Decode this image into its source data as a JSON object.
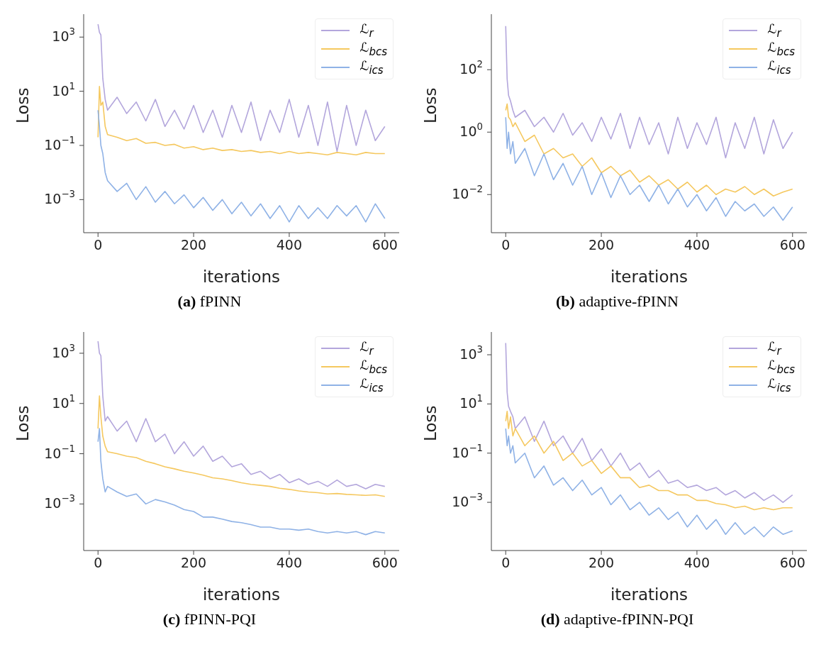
{
  "chart_data": [
    {
      "type": "line",
      "title": "(a) fPINN",
      "xlabel": "iterations",
      "ylabel": "Loss",
      "log": "y",
      "legend": "top right",
      "marker": "none",
      "line_style": "solid",
      "xlim": [
        -30,
        630
      ],
      "xticks": [
        0,
        200,
        400,
        600
      ],
      "ylim": [
        6e-05,
        7000
      ],
      "yticks": [
        {
          "value": 1000,
          "label": "10$^{3}$"
        },
        {
          "value": 10,
          "label": "10$^{1}$"
        },
        {
          "value": 0.1,
          "label": "10$^{−1}$"
        },
        {
          "value": 0.001,
          "label": "10$^{−3}$"
        }
      ],
      "x": [
        0,
        3,
        6,
        10,
        15,
        20,
        40,
        60,
        80,
        100,
        120,
        140,
        160,
        180,
        200,
        220,
        240,
        260,
        280,
        300,
        320,
        340,
        360,
        380,
        400,
        420,
        440,
        460,
        480,
        500,
        520,
        540,
        560,
        580,
        600
      ],
      "series": [
        {
          "name": "ℒ$_{r}$",
          "color": "#b3a6dc",
          "values": [
            3000,
            1500,
            1200,
            30,
            5,
            2,
            6,
            1.5,
            4,
            0.8,
            5,
            0.5,
            2,
            0.4,
            3,
            0.3,
            2,
            0.2,
            3,
            0.3,
            4,
            0.15,
            2,
            0.3,
            5,
            0.2,
            3,
            0.1,
            4,
            0.06,
            3,
            0.1,
            2,
            0.15,
            0.5
          ]
        },
        {
          "name": "ℒ$_{bcs}$",
          "color": "#f5c85f",
          "values": [
            0.2,
            15,
            3,
            4,
            0.5,
            0.25,
            0.2,
            0.15,
            0.18,
            0.12,
            0.13,
            0.1,
            0.11,
            0.08,
            0.09,
            0.07,
            0.08,
            0.065,
            0.07,
            0.06,
            0.065,
            0.055,
            0.06,
            0.05,
            0.06,
            0.05,
            0.055,
            0.05,
            0.045,
            0.055,
            0.05,
            0.045,
            0.055,
            0.05,
            0.05
          ]
        },
        {
          "name": "ℒ$_{ics}$",
          "color": "#8fb2e6",
          "values": [
            2,
            0.5,
            0.1,
            0.05,
            0.01,
            0.005,
            0.002,
            0.004,
            0.001,
            0.003,
            0.0008,
            0.002,
            0.0007,
            0.0015,
            0.0005,
            0.0012,
            0.0004,
            0.001,
            0.0003,
            0.0008,
            0.00025,
            0.0007,
            0.0002,
            0.0006,
            0.00015,
            0.0006,
            0.0002,
            0.0005,
            0.0002,
            0.0006,
            0.00025,
            0.0006,
            0.00015,
            0.0007,
            0.0002
          ]
        }
      ]
    },
    {
      "type": "line",
      "title": "(b) adaptive-fPINN",
      "xlabel": "iterations",
      "ylabel": "Loss",
      "log": "y",
      "legend": "top right",
      "marker": "none",
      "line_style": "solid",
      "xlim": [
        -30,
        630
      ],
      "xticks": [
        0,
        200,
        400,
        600
      ],
      "ylim": [
        0.0006,
        6000
      ],
      "yticks": [
        {
          "value": 100,
          "label": "10$^{2}$"
        },
        {
          "value": 1,
          "label": "10$^{0}$"
        },
        {
          "value": 0.01,
          "label": "10$^{−2}$"
        }
      ],
      "x": [
        0,
        3,
        6,
        10,
        15,
        20,
        40,
        60,
        80,
        100,
        120,
        140,
        160,
        180,
        200,
        220,
        240,
        260,
        280,
        300,
        320,
        340,
        360,
        380,
        400,
        420,
        440,
        460,
        480,
        500,
        520,
        540,
        560,
        580,
        600
      ],
      "series": [
        {
          "name": "ℒ$_{r}$",
          "color": "#b3a6dc",
          "values": [
            2500,
            50,
            15,
            10,
            5,
            3,
            5,
            1.5,
            3,
            1,
            4,
            0.8,
            2,
            0.5,
            3,
            0.6,
            4,
            0.3,
            3,
            0.4,
            2,
            0.2,
            3,
            0.3,
            2,
            0.4,
            3,
            0.15,
            2,
            0.3,
            3,
            0.2,
            2.5,
            0.3,
            1
          ]
        },
        {
          "name": "ℒ$_{bcs}$",
          "color": "#f5c85f",
          "values": [
            5,
            8,
            3,
            2.5,
            1.5,
            2,
            0.5,
            0.8,
            0.2,
            0.3,
            0.15,
            0.2,
            0.08,
            0.15,
            0.05,
            0.08,
            0.04,
            0.06,
            0.025,
            0.04,
            0.02,
            0.03,
            0.015,
            0.025,
            0.012,
            0.02,
            0.01,
            0.015,
            0.012,
            0.018,
            0.01,
            0.015,
            0.009,
            0.012,
            0.015
          ]
        },
        {
          "name": "ℒ$_{ics}$",
          "color": "#8fb2e6",
          "values": [
            3,
            0.3,
            1,
            0.2,
            0.5,
            0.1,
            0.3,
            0.04,
            0.2,
            0.03,
            0.1,
            0.02,
            0.08,
            0.01,
            0.05,
            0.008,
            0.04,
            0.01,
            0.02,
            0.006,
            0.02,
            0.005,
            0.015,
            0.004,
            0.01,
            0.003,
            0.008,
            0.002,
            0.006,
            0.003,
            0.005,
            0.002,
            0.004,
            0.0015,
            0.004
          ]
        }
      ]
    },
    {
      "type": "line",
      "title": "(c) fPINN-PQI",
      "xlabel": "iterations",
      "ylabel": "Loss",
      "log": "y",
      "legend": "top right",
      "marker": "none",
      "line_style": "solid",
      "xlim": [
        -30,
        630
      ],
      "xticks": [
        0,
        200,
        400,
        600
      ],
      "ylim": [
        1.4e-05,
        7000
      ],
      "yticks": [
        {
          "value": 1000,
          "label": "10$^{3}$"
        },
        {
          "value": 10,
          "label": "10$^{1}$"
        },
        {
          "value": 0.1,
          "label": "10$^{−1}$"
        },
        {
          "value": 0.001,
          "label": "10$^{−3}$"
        }
      ],
      "x": [
        0,
        3,
        6,
        10,
        15,
        20,
        40,
        60,
        80,
        100,
        120,
        140,
        160,
        180,
        200,
        220,
        240,
        260,
        280,
        300,
        320,
        340,
        360,
        380,
        400,
        420,
        440,
        460,
        480,
        500,
        520,
        540,
        560,
        580,
        600
      ],
      "series": [
        {
          "name": "ℒ$_{r}$",
          "color": "#b3a6dc",
          "values": [
            3000,
            1000,
            800,
            20,
            2,
            3,
            0.8,
            2,
            0.3,
            2.5,
            0.3,
            0.6,
            0.1,
            0.3,
            0.08,
            0.2,
            0.05,
            0.08,
            0.03,
            0.04,
            0.015,
            0.02,
            0.01,
            0.015,
            0.007,
            0.01,
            0.006,
            0.008,
            0.005,
            0.009,
            0.005,
            0.006,
            0.004,
            0.006,
            0.005
          ]
        },
        {
          "name": "ℒ$_{bcs}$",
          "color": "#f5c85f",
          "values": [
            1,
            20,
            3,
            0.5,
            0.2,
            0.12,
            0.1,
            0.08,
            0.07,
            0.05,
            0.04,
            0.03,
            0.025,
            0.02,
            0.017,
            0.014,
            0.011,
            0.01,
            0.0085,
            0.007,
            0.006,
            0.0055,
            0.005,
            0.0042,
            0.0038,
            0.0033,
            0.003,
            0.0028,
            0.0025,
            0.0026,
            0.0024,
            0.0023,
            0.0022,
            0.0023,
            0.002
          ]
        },
        {
          "name": "ℒ$_{ics}$",
          "color": "#8fb2e6",
          "values": [
            0.3,
            1,
            0.05,
            0.01,
            0.003,
            0.005,
            0.003,
            0.002,
            0.0025,
            0.001,
            0.0015,
            0.0012,
            0.0009,
            0.0006,
            0.0005,
            0.0003,
            0.0003,
            0.00025,
            0.0002,
            0.00018,
            0.00015,
            0.00012,
            0.00012,
            0.0001,
            0.0001,
            9e-05,
            0.0001,
            8e-05,
            7e-05,
            8e-05,
            7e-05,
            8e-05,
            6e-05,
            8e-05,
            7e-05
          ]
        }
      ]
    },
    {
      "type": "line",
      "title": "(d) adaptive-fPINN-PQI",
      "xlabel": "iterations",
      "ylabel": "Loss",
      "log": "y",
      "legend": "top right",
      "marker": "none",
      "line_style": "solid",
      "xlim": [
        -30,
        630
      ],
      "xticks": [
        0,
        200,
        400,
        600
      ],
      "ylim": [
        1.1e-05,
        8400
      ],
      "yticks": [
        {
          "value": 1000,
          "label": "10$^{3}$"
        },
        {
          "value": 10,
          "label": "10$^{1}$"
        },
        {
          "value": 0.1,
          "label": "10$^{−1}$"
        },
        {
          "value": 0.001,
          "label": "10$^{−3}$"
        }
      ],
      "x": [
        0,
        3,
        6,
        10,
        15,
        20,
        40,
        60,
        80,
        100,
        120,
        140,
        160,
        180,
        200,
        220,
        240,
        260,
        280,
        300,
        320,
        340,
        360,
        380,
        400,
        420,
        440,
        460,
        480,
        500,
        520,
        540,
        560,
        580,
        600
      ],
      "series": [
        {
          "name": "ℒ$_{r}$",
          "color": "#b3a6dc",
          "values": [
            3000,
            30,
            8,
            5,
            3,
            1,
            3,
            0.3,
            2,
            0.2,
            0.5,
            0.1,
            0.4,
            0.05,
            0.15,
            0.03,
            0.1,
            0.02,
            0.04,
            0.01,
            0.02,
            0.006,
            0.008,
            0.004,
            0.005,
            0.003,
            0.004,
            0.002,
            0.003,
            0.0015,
            0.0025,
            0.0012,
            0.002,
            0.001,
            0.002
          ]
        },
        {
          "name": "ℒ$_{bcs}$",
          "color": "#f5c85f",
          "values": [
            2,
            5,
            1,
            3,
            0.5,
            1,
            0.2,
            0.5,
            0.1,
            0.3,
            0.05,
            0.1,
            0.03,
            0.05,
            0.015,
            0.03,
            0.01,
            0.01,
            0.004,
            0.005,
            0.003,
            0.003,
            0.002,
            0.002,
            0.0012,
            0.0012,
            0.0009,
            0.0008,
            0.0006,
            0.0007,
            0.0005,
            0.0006,
            0.0005,
            0.0006,
            0.0006
          ]
        },
        {
          "name": "ℒ$_{ics}$",
          "color": "#8fb2e6",
          "values": [
            1,
            0.2,
            0.5,
            0.1,
            0.2,
            0.04,
            0.1,
            0.01,
            0.03,
            0.005,
            0.01,
            0.003,
            0.008,
            0.002,
            0.004,
            0.0008,
            0.002,
            0.0005,
            0.001,
            0.0003,
            0.0006,
            0.0002,
            0.0004,
            0.0001,
            0.0003,
            8e-05,
            0.0002,
            5e-05,
            0.00015,
            5e-05,
            0.0001,
            4e-05,
            0.0001,
            5e-05,
            7e-05
          ]
        }
      ]
    }
  ]
}
